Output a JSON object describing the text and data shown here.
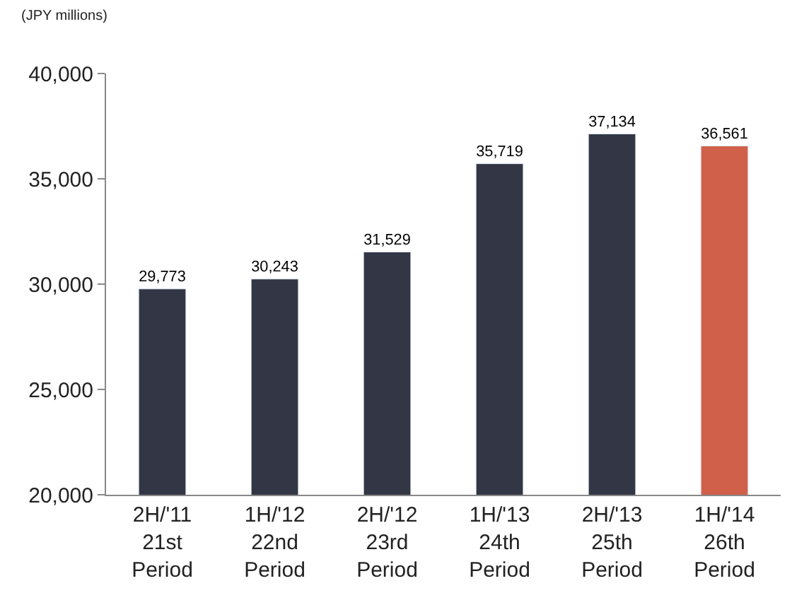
{
  "chart_data": {
    "type": "bar",
    "categories": [
      "2H/'11\n21st\nPeriod",
      "1H/'12\n22nd\nPeriod",
      "2H/'12\n23rd\nPeriod",
      "1H/'13\n24th\nPeriod",
      "2H/'13\n25th\nPeriod",
      "1H/'14\n26th\nPeriod"
    ],
    "values": [
      29773,
      30243,
      31529,
      35719,
      37134,
      36561
    ],
    "colors": [
      "#333745",
      "#333745",
      "#333745",
      "#333745",
      "#333745",
      "#d0604a"
    ],
    "value_labels": [
      "29,773",
      "30,243",
      "31,529",
      "35,719",
      "37,134",
      "36,561"
    ],
    "ylim": [
      20000,
      40000
    ],
    "yticks": [
      {
        "value": 20000,
        "label": "20,000"
      },
      {
        "value": 25000,
        "label": "25,000"
      },
      {
        "value": 30000,
        "label": "30,000"
      },
      {
        "value": 35000,
        "label": "35,000"
      },
      {
        "value": 40000,
        "label": "40,000"
      }
    ],
    "annotations": [
      "(JPY millions)"
    ]
  }
}
